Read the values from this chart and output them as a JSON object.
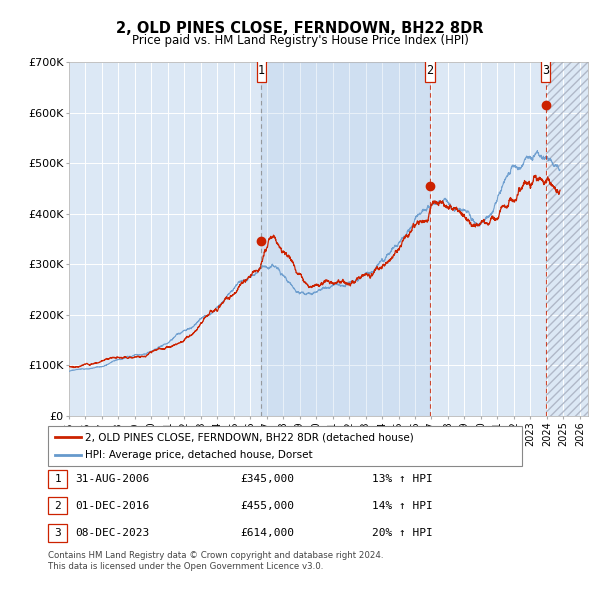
{
  "title": "2, OLD PINES CLOSE, FERNDOWN, BH22 8DR",
  "subtitle": "Price paid vs. HM Land Registry's House Price Index (HPI)",
  "background_color": "#ffffff",
  "plot_bg_color": "#dce8f5",
  "grid_color": "#ffffff",
  "red_line_color": "#cc2200",
  "blue_line_color": "#6699cc",
  "shade_color": "#c8daee",
  "hatch_color": "#c0c8d8",
  "sale_prices": [
    345000,
    455000,
    614000
  ],
  "sale_labels": [
    "1",
    "2",
    "3"
  ],
  "sale_hpi_pct": [
    "13%",
    "14%",
    "20%"
  ],
  "sale_date_labels": [
    "31-AUG-2006",
    "01-DEC-2016",
    "08-DEC-2023"
  ],
  "sale_price_labels": [
    "£345,000",
    "£455,000",
    "£614,000"
  ],
  "legend_line1": "2, OLD PINES CLOSE, FERNDOWN, BH22 8DR (detached house)",
  "legend_line2": "HPI: Average price, detached house, Dorset",
  "footnote1": "Contains HM Land Registry data © Crown copyright and database right 2024.",
  "footnote2": "This data is licensed under the Open Government Licence v3.0.",
  "ylim": [
    0,
    700000
  ],
  "yticks": [
    0,
    100000,
    200000,
    300000,
    400000,
    500000,
    600000,
    700000
  ],
  "ytick_labels": [
    "£0",
    "£100K",
    "£200K",
    "£300K",
    "£400K",
    "£500K",
    "£600K",
    "£700K"
  ],
  "xlim_start": 1995.0,
  "xlim_end": 2026.5,
  "sale_year_vals": [
    2006.667,
    2016.917,
    2023.933
  ]
}
